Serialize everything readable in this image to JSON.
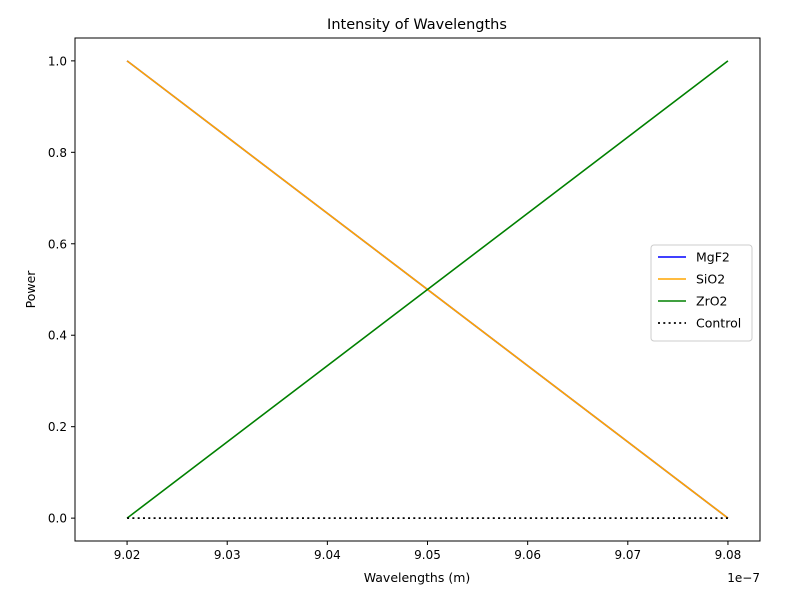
{
  "chart_data": {
    "type": "line",
    "title": "Intensity of Wavelengths",
    "xlabel": "Wavelengths (m)",
    "ylabel": "Power",
    "x_offset_text": "1e−7",
    "x_tick_labels": [
      "9.02",
      "9.03",
      "9.04",
      "9.05",
      "9.06",
      "9.07",
      "9.08"
    ],
    "y_tick_labels": [
      "0.0",
      "0.2",
      "0.4",
      "0.6",
      "0.8",
      "1.0"
    ],
    "xlim": [
      9.0148e-07,
      9.0832e-07
    ],
    "ylim": [
      -0.05,
      1.05
    ],
    "x": [
      9.02e-07,
      9.08e-07
    ],
    "series": [
      {
        "name": "MgF2",
        "color": "#0000ff",
        "style": "solid",
        "values": [
          1.0,
          0.0
        ]
      },
      {
        "name": "SiO2",
        "color": "#ffa500",
        "style": "solid",
        "values": [
          1.0,
          0.0
        ]
      },
      {
        "name": "ZrO2",
        "color": "#008000",
        "style": "solid",
        "values": [
          0.0,
          1.0
        ]
      },
      {
        "name": "Control",
        "color": "#000000",
        "style": "dotted",
        "values": [
          0.0,
          0.0
        ]
      }
    ],
    "grid": false,
    "legend_position": "center-right"
  }
}
